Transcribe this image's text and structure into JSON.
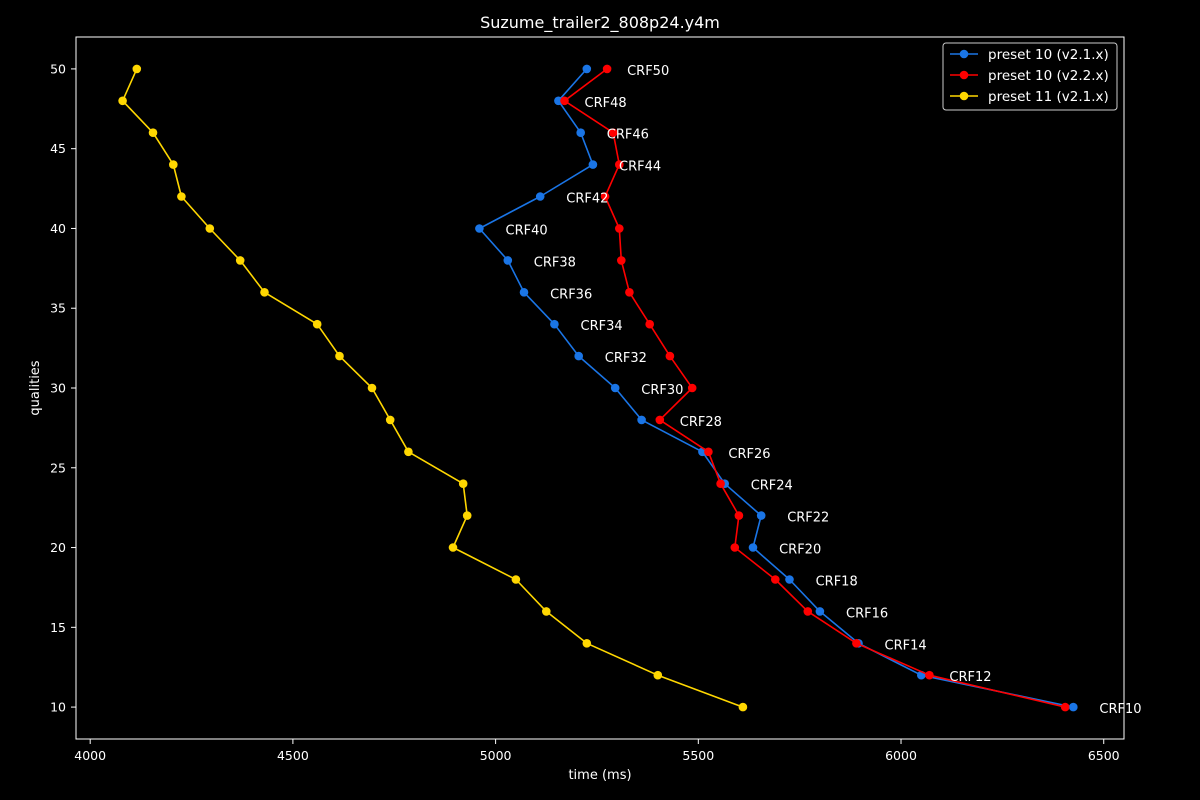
{
  "chart_data": {
    "type": "line",
    "title": "Suzume_trailer2_808p24.y4m",
    "xlabel": "time (ms)",
    "ylabel": "qualities",
    "xlim": [
      3965,
      6550
    ],
    "ylim": [
      8,
      52
    ],
    "xticks": [
      4000,
      4500,
      5000,
      5500,
      6000,
      6500
    ],
    "yticks": [
      10,
      15,
      20,
      25,
      30,
      35,
      40,
      45,
      50
    ],
    "grid": false,
    "legend_position": "top-right",
    "series": [
      {
        "name": "preset 10 (v2.1.x)",
        "color": "#1a75e6",
        "points": [
          {
            "x": 5225,
            "y": 50
          },
          {
            "x": 5155,
            "y": 48
          },
          {
            "x": 5210,
            "y": 46
          },
          {
            "x": 5240,
            "y": 44
          },
          {
            "x": 5110,
            "y": 42
          },
          {
            "x": 4960,
            "y": 40
          },
          {
            "x": 5030,
            "y": 38
          },
          {
            "x": 5070,
            "y": 36
          },
          {
            "x": 5145,
            "y": 34
          },
          {
            "x": 5205,
            "y": 32
          },
          {
            "x": 5295,
            "y": 30
          },
          {
            "x": 5360,
            "y": 28
          },
          {
            "x": 5510,
            "y": 26
          },
          {
            "x": 5565,
            "y": 24
          },
          {
            "x": 5655,
            "y": 22
          },
          {
            "x": 5635,
            "y": 20
          },
          {
            "x": 5725,
            "y": 18
          },
          {
            "x": 5800,
            "y": 16
          },
          {
            "x": 5895,
            "y": 14
          },
          {
            "x": 6050,
            "y": 12
          },
          {
            "x": 6425,
            "y": 10
          }
        ]
      },
      {
        "name": "preset 10 (v2.2.x)",
        "color": "#ff0000",
        "points": [
          {
            "x": 5275,
            "y": 50
          },
          {
            "x": 5170,
            "y": 48
          },
          {
            "x": 5290,
            "y": 46
          },
          {
            "x": 5305,
            "y": 44
          },
          {
            "x": 5270,
            "y": 42
          },
          {
            "x": 5305,
            "y": 40
          },
          {
            "x": 5310,
            "y": 38
          },
          {
            "x": 5330,
            "y": 36
          },
          {
            "x": 5380,
            "y": 34
          },
          {
            "x": 5430,
            "y": 32
          },
          {
            "x": 5485,
            "y": 30
          },
          {
            "x": 5405,
            "y": 28
          },
          {
            "x": 5525,
            "y": 26
          },
          {
            "x": 5555,
            "y": 24
          },
          {
            "x": 5600,
            "y": 22
          },
          {
            "x": 5590,
            "y": 20
          },
          {
            "x": 5690,
            "y": 18
          },
          {
            "x": 5770,
            "y": 16
          },
          {
            "x": 5890,
            "y": 14
          },
          {
            "x": 6070,
            "y": 12
          },
          {
            "x": 6405,
            "y": 10
          }
        ]
      },
      {
        "name": "preset 11 (v2.1.x)",
        "color": "#ffd700",
        "points": [
          {
            "x": 4115,
            "y": 50
          },
          {
            "x": 4080,
            "y": 48
          },
          {
            "x": 4155,
            "y": 46
          },
          {
            "x": 4205,
            "y": 44
          },
          {
            "x": 4225,
            "y": 42
          },
          {
            "x": 4295,
            "y": 40
          },
          {
            "x": 4370,
            "y": 38
          },
          {
            "x": 4430,
            "y": 36
          },
          {
            "x": 4560,
            "y": 34
          },
          {
            "x": 4615,
            "y": 32
          },
          {
            "x": 4695,
            "y": 30
          },
          {
            "x": 4740,
            "y": 28
          },
          {
            "x": 4785,
            "y": 26
          },
          {
            "x": 4920,
            "y": 24
          },
          {
            "x": 4930,
            "y": 22
          },
          {
            "x": 4895,
            "y": 20
          },
          {
            "x": 5050,
            "y": 18
          },
          {
            "x": 5125,
            "y": 16
          },
          {
            "x": 5225,
            "y": 14
          },
          {
            "x": 5400,
            "y": 12
          },
          {
            "x": 5610,
            "y": 10
          }
        ]
      }
    ],
    "annotations": [
      {
        "text": "CRF50",
        "x": 5275,
        "y": 50
      },
      {
        "text": "CRF48",
        "x": 5170,
        "y": 48
      },
      {
        "text": "CRF46",
        "x": 5225,
        "y": 46
      },
      {
        "text": "CRF44",
        "x": 5255,
        "y": 44
      },
      {
        "text": "CRF42",
        "x": 5125,
        "y": 42
      },
      {
        "text": "CRF40",
        "x": 4975,
        "y": 40
      },
      {
        "text": "CRF38",
        "x": 5045,
        "y": 38
      },
      {
        "text": "CRF36",
        "x": 5085,
        "y": 36
      },
      {
        "text": "CRF34",
        "x": 5160,
        "y": 34
      },
      {
        "text": "CRF32",
        "x": 5220,
        "y": 32
      },
      {
        "text": "CRF30",
        "x": 5310,
        "y": 30
      },
      {
        "text": "CRF28",
        "x": 5405,
        "y": 28
      },
      {
        "text": "CRF26",
        "x": 5525,
        "y": 26
      },
      {
        "text": "CRF24",
        "x": 5580,
        "y": 24
      },
      {
        "text": "CRF22",
        "x": 5670,
        "y": 22
      },
      {
        "text": "CRF20",
        "x": 5650,
        "y": 20
      },
      {
        "text": "CRF18",
        "x": 5740,
        "y": 18
      },
      {
        "text": "CRF16",
        "x": 5815,
        "y": 16
      },
      {
        "text": "CRF14",
        "x": 5910,
        "y": 14
      },
      {
        "text": "CRF12",
        "x": 6070,
        "y": 12
      },
      {
        "text": "CRF10",
        "x": 6440,
        "y": 10
      }
    ]
  }
}
